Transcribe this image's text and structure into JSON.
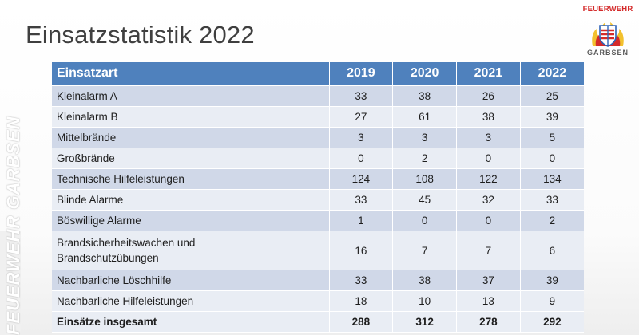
{
  "slide": {
    "title": "Einsatzstatistik 2022"
  },
  "logo": {
    "text_top": "FEUERWEHR",
    "text_bottom": "GARBSEN",
    "colors": {
      "red": "#d42a2a",
      "yellow": "#f2c12e",
      "blue": "#2e63b8",
      "gray": "#5a5a5a"
    }
  },
  "watermark": {
    "text": "FEUERWEHR GARBSEN"
  },
  "table": {
    "header_color": "#4f81bd",
    "band_dark": "#d0d8e8",
    "band_light": "#e9edf4",
    "headers": {
      "type": "Einsatzart",
      "years": [
        "2019",
        "2020",
        "2021",
        "2022"
      ]
    },
    "rows": [
      {
        "label": "Kleinalarm A",
        "values": [
          "33",
          "38",
          "26",
          "25"
        ]
      },
      {
        "label": "Kleinalarm B",
        "values": [
          "27",
          "61",
          "38",
          "39"
        ]
      },
      {
        "label": "Mittelbrände",
        "values": [
          "3",
          "3",
          "3",
          "5"
        ]
      },
      {
        "label": "Großbrände",
        "values": [
          "0",
          "2",
          "0",
          "0"
        ]
      },
      {
        "label": "Technische Hilfeleistungen",
        "values": [
          "124",
          "108",
          "122",
          "134"
        ]
      },
      {
        "label": "Blinde Alarme",
        "values": [
          "33",
          "45",
          "32",
          "33"
        ]
      },
      {
        "label": "Böswillige Alarme",
        "values": [
          "1",
          "0",
          "0",
          "2"
        ]
      },
      {
        "label_lines": [
          "Brandsicherheitswachen und",
          "Brandschutzübungen"
        ],
        "values": [
          "16",
          "7",
          "7",
          "6"
        ]
      },
      {
        "label": "Nachbarliche Löschhilfe",
        "values": [
          "33",
          "38",
          "37",
          "39"
        ]
      },
      {
        "label": "Nachbarliche Hilfeleistungen",
        "values": [
          "18",
          "10",
          "13",
          "9"
        ]
      },
      {
        "label": "Einsätze insgesamt",
        "values": [
          "288",
          "312",
          "278",
          "292"
        ]
      }
    ]
  }
}
